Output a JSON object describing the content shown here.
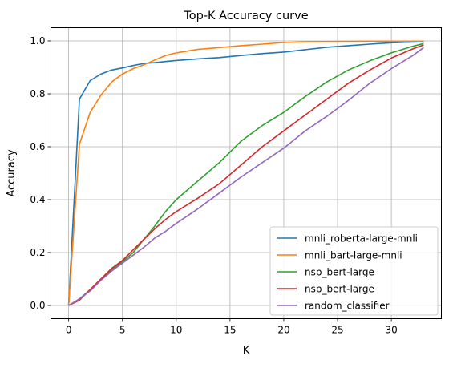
{
  "chart_data": {
    "type": "line",
    "title": "Top-K Accuracy curve",
    "xlabel": "K",
    "ylabel": "Accuracy",
    "xlim": [
      -1.65,
      34.65
    ],
    "ylim": [
      -0.05,
      1.05
    ],
    "xticks": [
      0,
      5,
      10,
      15,
      20,
      25,
      30
    ],
    "xtick_labels": [
      "0",
      "5",
      "10",
      "15",
      "20",
      "25",
      "30"
    ],
    "yticks": [
      0.0,
      0.2,
      0.4,
      0.6,
      0.8,
      1.0
    ],
    "ytick_labels": [
      "0.0",
      "0.2",
      "0.4",
      "0.6",
      "0.8",
      "1.0"
    ],
    "grid": true,
    "legend_position": "lower-right",
    "series": [
      {
        "name": "mnli_roberta-large-mnli",
        "color": "#1f77b4",
        "points": [
          [
            0,
            0.0
          ],
          [
            1,
            0.78
          ],
          [
            2,
            0.85
          ],
          [
            3,
            0.875
          ],
          [
            4,
            0.89
          ],
          [
            5,
            0.898
          ],
          [
            6,
            0.907
          ],
          [
            7,
            0.915
          ],
          [
            8,
            0.918
          ],
          [
            9,
            0.922
          ],
          [
            10,
            0.926
          ],
          [
            12,
            0.932
          ],
          [
            14,
            0.937
          ],
          [
            16,
            0.945
          ],
          [
            18,
            0.952
          ],
          [
            20,
            0.958
          ],
          [
            22,
            0.967
          ],
          [
            24,
            0.976
          ],
          [
            26,
            0.982
          ],
          [
            28,
            0.988
          ],
          [
            30,
            0.993
          ],
          [
            33,
            0.997
          ]
        ]
      },
      {
        "name": "mnli_bart-large-mnli",
        "color": "#ff7f0e",
        "points": [
          [
            0,
            0.0
          ],
          [
            1,
            0.61
          ],
          [
            2,
            0.73
          ],
          [
            3,
            0.795
          ],
          [
            4,
            0.845
          ],
          [
            5,
            0.875
          ],
          [
            6,
            0.895
          ],
          [
            7,
            0.91
          ],
          [
            8,
            0.928
          ],
          [
            9,
            0.945
          ],
          [
            10,
            0.955
          ],
          [
            12,
            0.968
          ],
          [
            14,
            0.975
          ],
          [
            16,
            0.982
          ],
          [
            18,
            0.988
          ],
          [
            20,
            0.994
          ],
          [
            22,
            0.997
          ],
          [
            25,
            0.998
          ],
          [
            28,
            0.999
          ],
          [
            33,
            0.999
          ]
        ]
      },
      {
        "name": "nsp_bert-large",
        "color": "#2ca02c",
        "points": [
          [
            0,
            0.0
          ],
          [
            1,
            0.025
          ],
          [
            2,
            0.06
          ],
          [
            3,
            0.1
          ],
          [
            4,
            0.135
          ],
          [
            5,
            0.165
          ],
          [
            6,
            0.2
          ],
          [
            7,
            0.25
          ],
          [
            8,
            0.3
          ],
          [
            9,
            0.355
          ],
          [
            10,
            0.4
          ],
          [
            12,
            0.47
          ],
          [
            14,
            0.54
          ],
          [
            16,
            0.62
          ],
          [
            18,
            0.68
          ],
          [
            20,
            0.73
          ],
          [
            22,
            0.79
          ],
          [
            24,
            0.845
          ],
          [
            26,
            0.89
          ],
          [
            28,
            0.925
          ],
          [
            30,
            0.955
          ],
          [
            32,
            0.98
          ],
          [
            33,
            0.99
          ]
        ]
      },
      {
        "name": "nsp_bert-large",
        "color": "#d62728",
        "points": [
          [
            0,
            0.0
          ],
          [
            1,
            0.02
          ],
          [
            2,
            0.06
          ],
          [
            3,
            0.1
          ],
          [
            4,
            0.14
          ],
          [
            5,
            0.17
          ],
          [
            6,
            0.21
          ],
          [
            7,
            0.25
          ],
          [
            8,
            0.29
          ],
          [
            9,
            0.325
          ],
          [
            10,
            0.355
          ],
          [
            12,
            0.405
          ],
          [
            14,
            0.46
          ],
          [
            16,
            0.53
          ],
          [
            18,
            0.6
          ],
          [
            20,
            0.66
          ],
          [
            22,
            0.72
          ],
          [
            24,
            0.78
          ],
          [
            26,
            0.84
          ],
          [
            28,
            0.89
          ],
          [
            30,
            0.935
          ],
          [
            32,
            0.97
          ],
          [
            33,
            0.985
          ]
        ]
      },
      {
        "name": "random_classifier",
        "color": "#9467bd",
        "points": [
          [
            0,
            0.0
          ],
          [
            1,
            0.025
          ],
          [
            2,
            0.055
          ],
          [
            3,
            0.095
          ],
          [
            4,
            0.13
          ],
          [
            5,
            0.16
          ],
          [
            6,
            0.19
          ],
          [
            7,
            0.22
          ],
          [
            8,
            0.255
          ],
          [
            9,
            0.28
          ],
          [
            10,
            0.31
          ],
          [
            12,
            0.365
          ],
          [
            14,
            0.425
          ],
          [
            16,
            0.485
          ],
          [
            18,
            0.54
          ],
          [
            20,
            0.595
          ],
          [
            22,
            0.66
          ],
          [
            24,
            0.715
          ],
          [
            26,
            0.775
          ],
          [
            28,
            0.84
          ],
          [
            30,
            0.895
          ],
          [
            32,
            0.945
          ],
          [
            33,
            0.975
          ]
        ]
      }
    ]
  }
}
